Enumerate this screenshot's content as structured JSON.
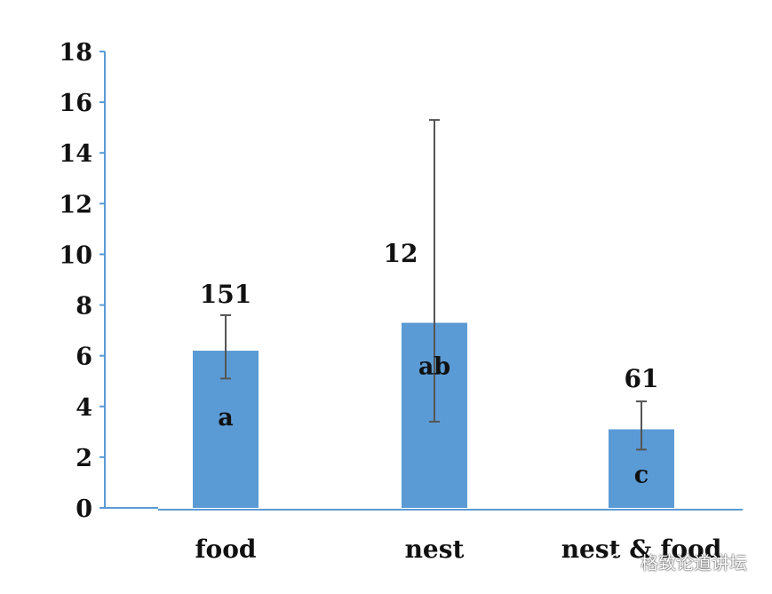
{
  "colors": {
    "bar": "#5b9bd5",
    "axis": "#5b9bd5",
    "error_bar": "#555555",
    "text": "#111111"
  },
  "chart_data": {
    "type": "bar",
    "categories": [
      "food",
      "nest",
      "nest & food"
    ],
    "values": [
      6.2,
      7.3,
      3.1
    ],
    "error_low": [
      5.1,
      3.4,
      2.3
    ],
    "error_high": [
      7.6,
      15.3,
      4.2
    ],
    "bar_labels": [
      "a",
      "ab",
      "c"
    ],
    "count_labels": [
      "151",
      "12",
      "61"
    ],
    "ylim": [
      0,
      18
    ],
    "yticks": [
      0,
      2,
      4,
      6,
      8,
      10,
      12,
      14,
      16,
      18
    ],
    "title": "",
    "xlabel": "",
    "ylabel": "",
    "grid": false
  },
  "watermark": {
    "text": "格致论道讲坛",
    "icon": "wechat-icon"
  }
}
